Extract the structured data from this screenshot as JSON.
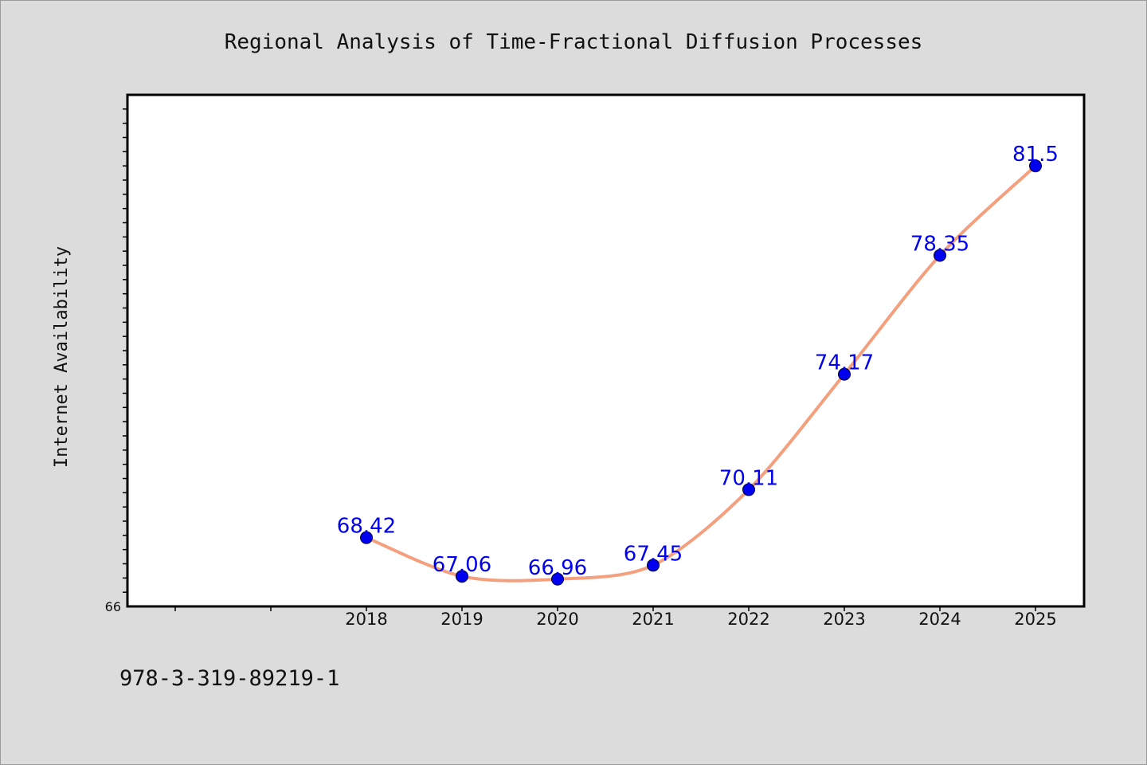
{
  "chart_data": {
    "type": "line",
    "title": "Regional Analysis of Time-Fractional Diffusion Processes",
    "xlabel": "",
    "ylabel": "Internet Availability",
    "categories": [
      "2018",
      "2019",
      "2020",
      "2021",
      "2022",
      "2023",
      "2024",
      "2025"
    ],
    "series": [
      {
        "values": [
          68.42,
          67.06,
          66.96,
          67.45,
          70.11,
          74.17,
          78.35,
          81.5
        ],
        "labels": [
          "68.42",
          "67.06",
          "66.96",
          "67.45",
          "70.11",
          "74.17",
          "78.35",
          "81.5"
        ]
      }
    ],
    "yticks": [
      "66"
    ],
    "ylim": [
      66,
      84
    ],
    "grid": false,
    "legend": "none",
    "colors": {
      "line": "#f4a07e",
      "marker": "#0000ee",
      "marker_edge": "#000033",
      "data_label": "#0000ee",
      "plot_bg": "#ffffff",
      "page_bg": "#dcdcdc"
    }
  },
  "footer": {
    "id_text": "978-3-319-89219-1"
  }
}
